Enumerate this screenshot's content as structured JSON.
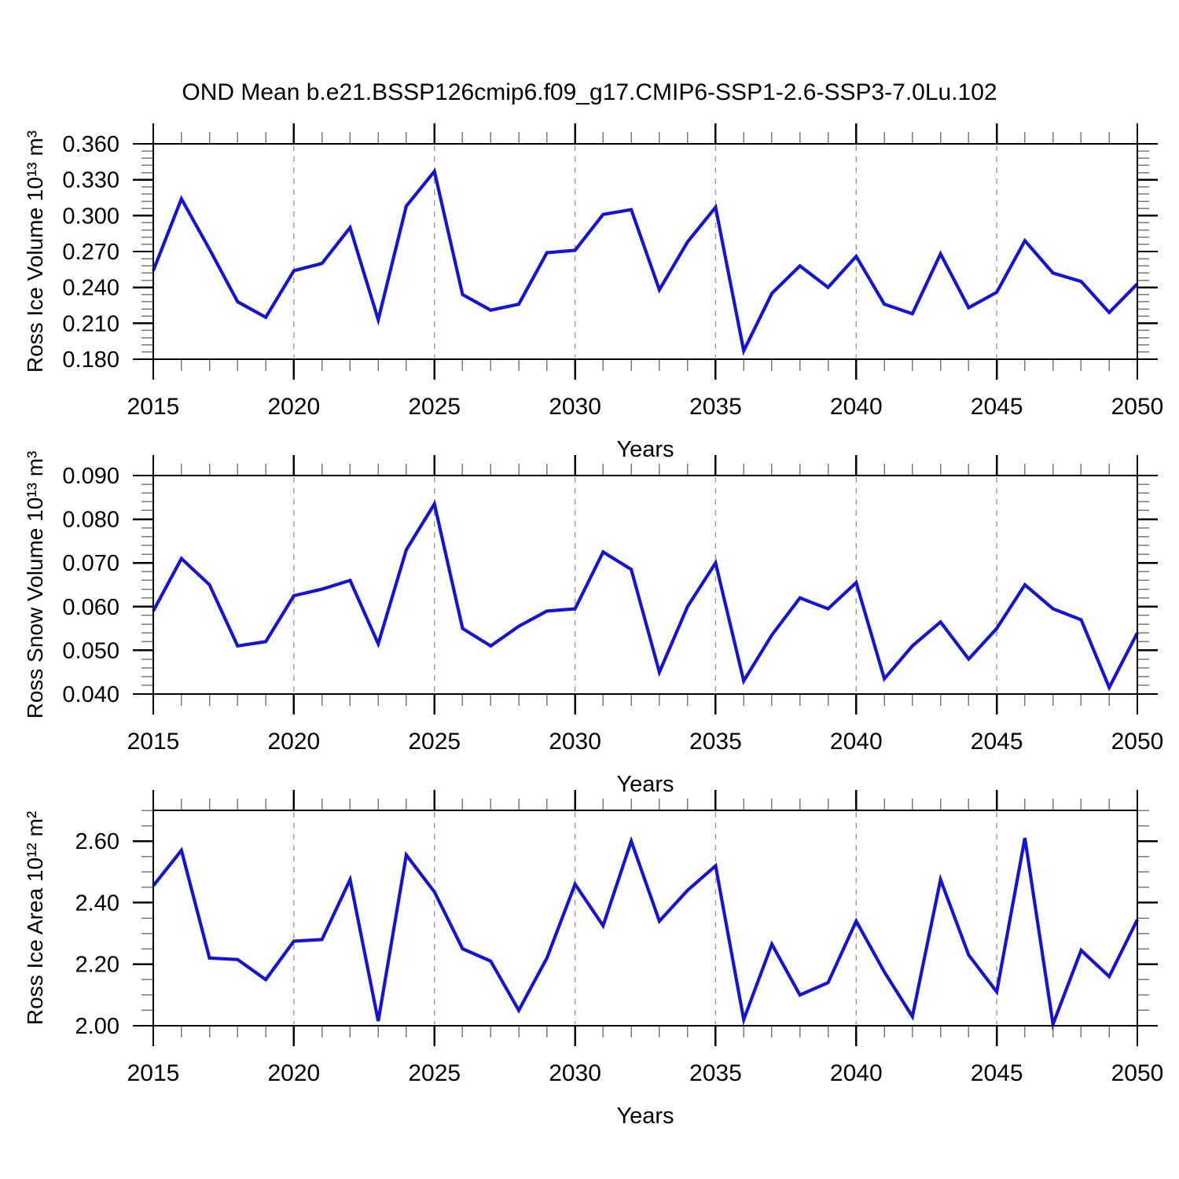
{
  "title": "OND Mean b.e21.BSSP126cmip6.f09_g17.CMIP6-SSP1-2.6-SSP3-7.0Lu.102",
  "colors": {
    "background": "#ffffff",
    "line": "#1414d6",
    "axis": "#000000",
    "grid": "#9a9a9a",
    "minor_tick": "#7a7a7a",
    "text": "#000000"
  },
  "chart_data": [
    {
      "type": "line",
      "ylabel": "Ross Ice Volume 10¹³ m³",
      "xlabel": "Years",
      "xlim": [
        2015,
        2050
      ],
      "ylim": [
        0.18,
        0.36
      ],
      "x_ticks": [
        2015,
        2020,
        2025,
        2030,
        2035,
        2040,
        2045,
        2050
      ],
      "x_tick_labels": [
        "2015",
        "2020",
        "2025",
        "2030",
        "2035",
        "2040",
        "2045",
        "2050"
      ],
      "x_minor_step": 1,
      "y_ticks": [
        0.18,
        0.21,
        0.24,
        0.27,
        0.3,
        0.33,
        0.36
      ],
      "y_tick_labels": [
        "0.180",
        "0.210",
        "0.240",
        "0.270",
        "0.300",
        "0.330",
        "0.360"
      ],
      "y_minor_step": 0.006,
      "grid_x": [
        2020,
        2025,
        2030,
        2035,
        2040,
        2045
      ],
      "grid_style": "vertical-dashed",
      "legend": null,
      "x": [
        2015,
        2016,
        2017,
        2018,
        2019,
        2020,
        2021,
        2022,
        2023,
        2024,
        2025,
        2026,
        2027,
        2028,
        2029,
        2030,
        2031,
        2032,
        2033,
        2034,
        2035,
        2036,
        2037,
        2038,
        2039,
        2040,
        2041,
        2042,
        2043,
        2044,
        2045,
        2046,
        2047,
        2048,
        2049,
        2050
      ],
      "values": [
        0.254,
        0.314,
        0.272,
        0.228,
        0.215,
        0.254,
        0.26,
        0.29,
        0.213,
        0.308,
        0.337,
        0.234,
        0.221,
        0.226,
        0.269,
        0.271,
        0.301,
        0.305,
        0.238,
        0.278,
        0.307,
        0.187,
        0.235,
        0.258,
        0.24,
        0.266,
        0.226,
        0.218,
        0.268,
        0.223,
        0.236,
        0.279,
        0.252,
        0.245,
        0.219,
        0.243
      ]
    },
    {
      "type": "line",
      "ylabel": "Ross Snow Volume 10¹³ m³",
      "xlabel": "Years",
      "xlim": [
        2015,
        2050
      ],
      "ylim": [
        0.04,
        0.09
      ],
      "x_ticks": [
        2015,
        2020,
        2025,
        2030,
        2035,
        2040,
        2045,
        2050
      ],
      "x_tick_labels": [
        "2015",
        "2020",
        "2025",
        "2030",
        "2035",
        "2040",
        "2045",
        "2050"
      ],
      "x_minor_step": 1,
      "y_ticks": [
        0.04,
        0.05,
        0.06,
        0.07,
        0.08,
        0.09
      ],
      "y_tick_labels": [
        "0.040",
        "0.050",
        "0.060",
        "0.070",
        "0.080",
        "0.090"
      ],
      "y_minor_step": 0.002,
      "grid_x": [
        2020,
        2025,
        2030,
        2035,
        2040,
        2045
      ],
      "grid_style": "vertical-dashed",
      "legend": null,
      "x": [
        2015,
        2016,
        2017,
        2018,
        2019,
        2020,
        2021,
        2022,
        2023,
        2024,
        2025,
        2026,
        2027,
        2028,
        2029,
        2030,
        2031,
        2032,
        2033,
        2034,
        2035,
        2036,
        2037,
        2038,
        2039,
        2040,
        2041,
        2042,
        2043,
        2044,
        2045,
        2046,
        2047,
        2048,
        2049,
        2050
      ],
      "values": [
        0.059,
        0.071,
        0.065,
        0.051,
        0.052,
        0.0625,
        0.064,
        0.066,
        0.0515,
        0.073,
        0.0835,
        0.055,
        0.051,
        0.0555,
        0.059,
        0.0595,
        0.0725,
        0.0685,
        0.045,
        0.06,
        0.07,
        0.043,
        0.0535,
        0.062,
        0.0595,
        0.0655,
        0.0435,
        0.051,
        0.0565,
        0.048,
        0.055,
        0.065,
        0.0595,
        0.057,
        0.0415,
        0.054
      ]
    },
    {
      "type": "line",
      "ylabel": "Ross Ice Area 10¹² m²",
      "xlabel": "Years",
      "xlim": [
        2015,
        2050
      ],
      "ylim": [
        2.0,
        2.7
      ],
      "x_ticks": [
        2015,
        2020,
        2025,
        2030,
        2035,
        2040,
        2045,
        2050
      ],
      "x_tick_labels": [
        "2015",
        "2020",
        "2025",
        "2030",
        "2035",
        "2040",
        "2045",
        "2050"
      ],
      "x_minor_step": 1,
      "y_ticks": [
        2.0,
        2.2,
        2.4,
        2.6
      ],
      "y_tick_labels": [
        "2.00",
        "2.20",
        "2.40",
        "2.60"
      ],
      "y_minor_step": 0.05,
      "grid_x": [
        2020,
        2025,
        2030,
        2035,
        2040,
        2045
      ],
      "grid_style": "vertical-dashed",
      "legend": null,
      "x": [
        2015,
        2016,
        2017,
        2018,
        2019,
        2020,
        2021,
        2022,
        2023,
        2024,
        2025,
        2026,
        2027,
        2028,
        2029,
        2030,
        2031,
        2032,
        2033,
        2034,
        2035,
        2036,
        2037,
        2038,
        2039,
        2040,
        2041,
        2042,
        2043,
        2044,
        2045,
        2046,
        2047,
        2048,
        2049,
        2050
      ],
      "values": [
        2.455,
        2.57,
        2.22,
        2.215,
        2.15,
        2.275,
        2.28,
        2.475,
        2.015,
        2.555,
        2.435,
        2.25,
        2.21,
        2.05,
        2.22,
        2.46,
        2.325,
        2.6,
        2.34,
        2.44,
        2.52,
        2.02,
        2.265,
        2.1,
        2.14,
        2.34,
        2.175,
        2.03,
        2.475,
        2.23,
        2.11,
        2.61,
        2.005,
        2.245,
        2.16,
        2.345
      ]
    }
  ]
}
